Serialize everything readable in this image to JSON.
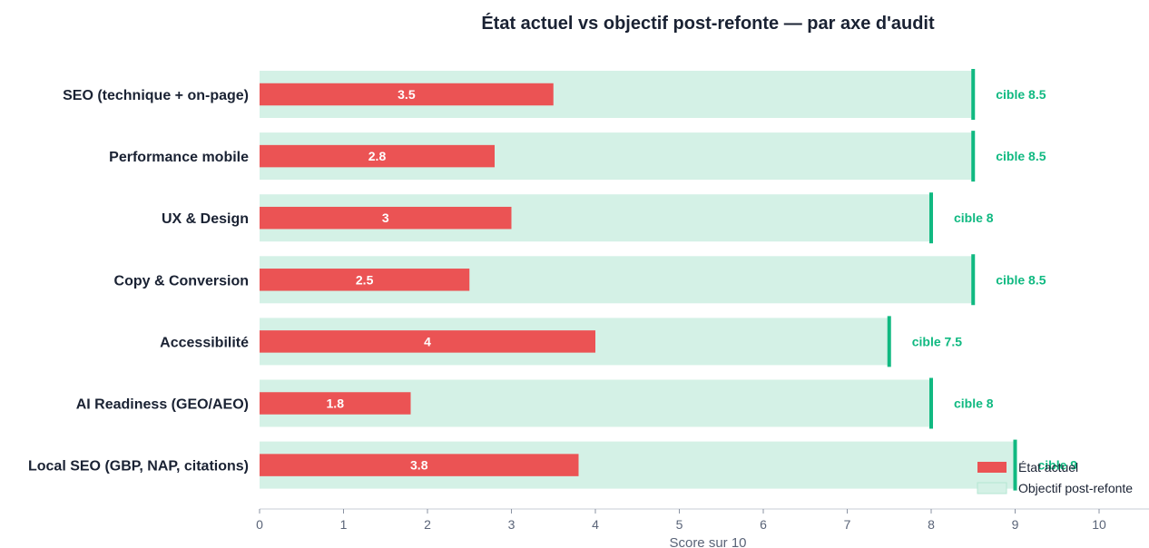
{
  "chart_data": {
    "type": "bar",
    "orientation": "horizontal",
    "title": "État actuel vs objectif post-refonte — par axe d'audit",
    "xlabel": "Score sur 10",
    "ylabel": "",
    "xlim": [
      0,
      10.5
    ],
    "xticks": [
      "0",
      "1",
      "2",
      "3",
      "4",
      "5",
      "6",
      "7",
      "8",
      "9",
      "10"
    ],
    "target_prefix": "cible",
    "categories": [
      "SEO (technique + on-page)",
      "Performance mobile",
      "UX & Design",
      "Copy & Conversion",
      "Accessibilité",
      "AI Readiness (GEO/AEO)",
      "Local SEO (GBP, NAP, citations)"
    ],
    "series": [
      {
        "name": "Objectif post-refonte",
        "values": [
          8.5,
          8.5,
          8,
          8.5,
          7.5,
          8,
          9
        ],
        "color": "#d4f1e6"
      },
      {
        "name": "État actuel",
        "values": [
          3.5,
          2.8,
          3,
          2.5,
          4,
          1.8,
          3.8
        ],
        "color": "#eb5354"
      }
    ],
    "value_labels": [
      "3.5",
      "2.8",
      "3",
      "2.5",
      "4",
      "1.8",
      "3.8"
    ],
    "target_labels": [
      "cible 8.5",
      "cible 8.5",
      "cible 8",
      "cible 8.5",
      "cible 7.5",
      "cible 8",
      "cible 9"
    ],
    "marker_color": "#10b981",
    "legend": {
      "position": "bottom-right",
      "items": [
        {
          "label": "État actuel",
          "color": "#eb5354"
        },
        {
          "label": "Objectif post-refonte",
          "color": "#d4f1e6"
        }
      ]
    },
    "grid": false
  }
}
